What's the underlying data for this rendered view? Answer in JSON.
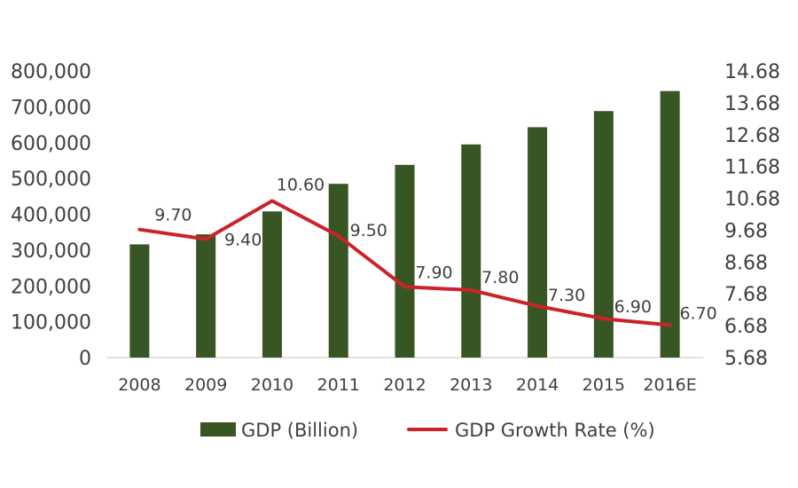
{
  "chart_data": {
    "type": "bar",
    "title": "",
    "categories": [
      "2008",
      "2009",
      "2010",
      "2011",
      "2012",
      "2013",
      "2014",
      "2015",
      "2016E"
    ],
    "series": [
      {
        "name": "GDP (Billion)",
        "type": "bar",
        "axis": "left",
        "color": "#375623",
        "values": [
          316000,
          344000,
          408000,
          485000,
          538000,
          595000,
          643000,
          688000,
          744000
        ]
      },
      {
        "name": "GDP Growth Rate (%)",
        "type": "line",
        "axis": "right",
        "color": "#cc2229",
        "values": [
          9.7,
          9.4,
          10.6,
          9.5,
          7.9,
          7.8,
          7.3,
          6.9,
          6.7
        ],
        "labels": [
          "9.70",
          "9.40",
          "10.60",
          "9.50",
          "7.90",
          "7.80",
          "7.30",
          "6.90",
          "6.70"
        ]
      }
    ],
    "y_left": {
      "range": [
        0,
        800000
      ],
      "ticks": [
        0,
        100000,
        200000,
        300000,
        400000,
        500000,
        600000,
        700000,
        800000
      ],
      "tick_labels": [
        "0",
        "100,000",
        "200,000",
        "300,000",
        "400,000",
        "500,000",
        "600,000",
        "700,000",
        "800,000"
      ]
    },
    "y_right": {
      "range": [
        5.68,
        14.68
      ],
      "ticks": [
        5.68,
        6.68,
        7.68,
        8.68,
        9.68,
        10.68,
        11.68,
        12.68,
        13.68,
        14.68
      ],
      "tick_labels": [
        "5.68",
        "6.68",
        "7.68",
        "8.68",
        "9.68",
        "10.68",
        "11.68",
        "12.68",
        "13.68",
        "14.68"
      ]
    },
    "grid": false,
    "legend": "bottom"
  }
}
